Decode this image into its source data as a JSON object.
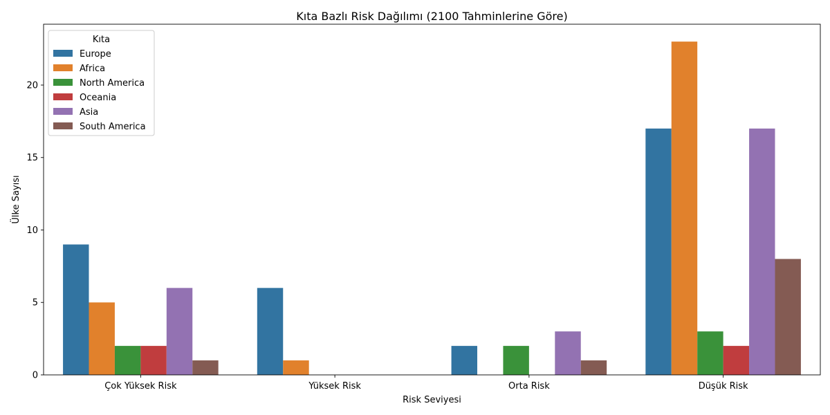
{
  "chart_data": {
    "type": "bar",
    "title": "Kıta Bazlı Risk Dağılımı (2100 Tahminlerine Göre)",
    "xlabel": "Risk Seviyesi",
    "ylabel": "Ülke Sayısı",
    "categories": [
      "Çok Yüksek Risk",
      "Yüksek Risk",
      "Orta Risk",
      "Düşük Risk"
    ],
    "ylim": [
      0,
      24.2
    ],
    "yticks": [
      0,
      5,
      10,
      15,
      20
    ],
    "grid": false,
    "legend": {
      "title": "Kıta",
      "placement": "upper-left"
    },
    "series": [
      {
        "name": "Europe",
        "color": "#3274a1",
        "values": [
          9,
          6,
          2,
          17
        ]
      },
      {
        "name": "Africa",
        "color": "#e1812c",
        "values": [
          5,
          1,
          0,
          23
        ]
      },
      {
        "name": "North America",
        "color": "#3a923a",
        "values": [
          2,
          0,
          2,
          3
        ]
      },
      {
        "name": "Oceania",
        "color": "#c03d3e",
        "values": [
          2,
          0,
          0,
          2
        ]
      },
      {
        "name": "Asia",
        "color": "#9372b2",
        "values": [
          6,
          0,
          3,
          17
        ]
      },
      {
        "name": "South America",
        "color": "#845b53",
        "values": [
          1,
          0,
          1,
          8
        ]
      }
    ]
  }
}
